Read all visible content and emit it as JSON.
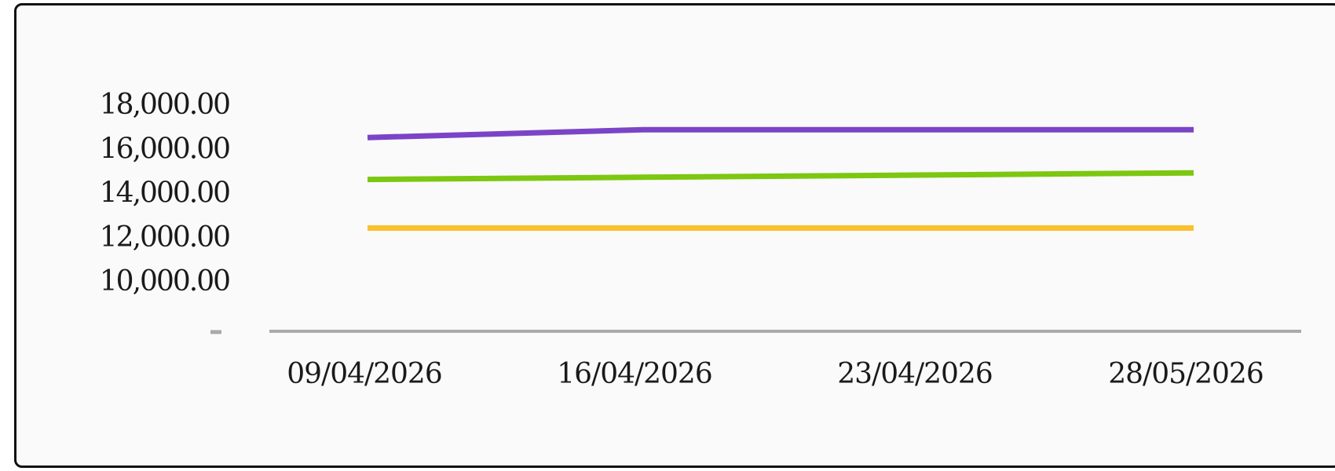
{
  "chart_data": {
    "type": "line",
    "categories": [
      "09/04/2026",
      "16/04/2026",
      "23/04/2026",
      "28/05/2026"
    ],
    "y_ticks": [
      "18,000.00",
      "16,000.00",
      "14,000.00",
      "12,000.00",
      "10,000.00"
    ],
    "y_tick_values": [
      18000,
      16000,
      14000,
      12000,
      10000
    ],
    "ylim": [
      10000,
      18000
    ],
    "grid": false,
    "legend": "none",
    "series": [
      {
        "color": "#7B44C7",
        "values": [
          16500,
          16850,
          16850,
          16850
        ]
      },
      {
        "color": "#7CC710",
        "values": [
          14600,
          14700,
          14800,
          14900
        ]
      },
      {
        "color": "#FBC02D",
        "values": [
          12400,
          12400,
          12400,
          12400
        ]
      }
    ],
    "axis_color": "#AAAAAA"
  }
}
